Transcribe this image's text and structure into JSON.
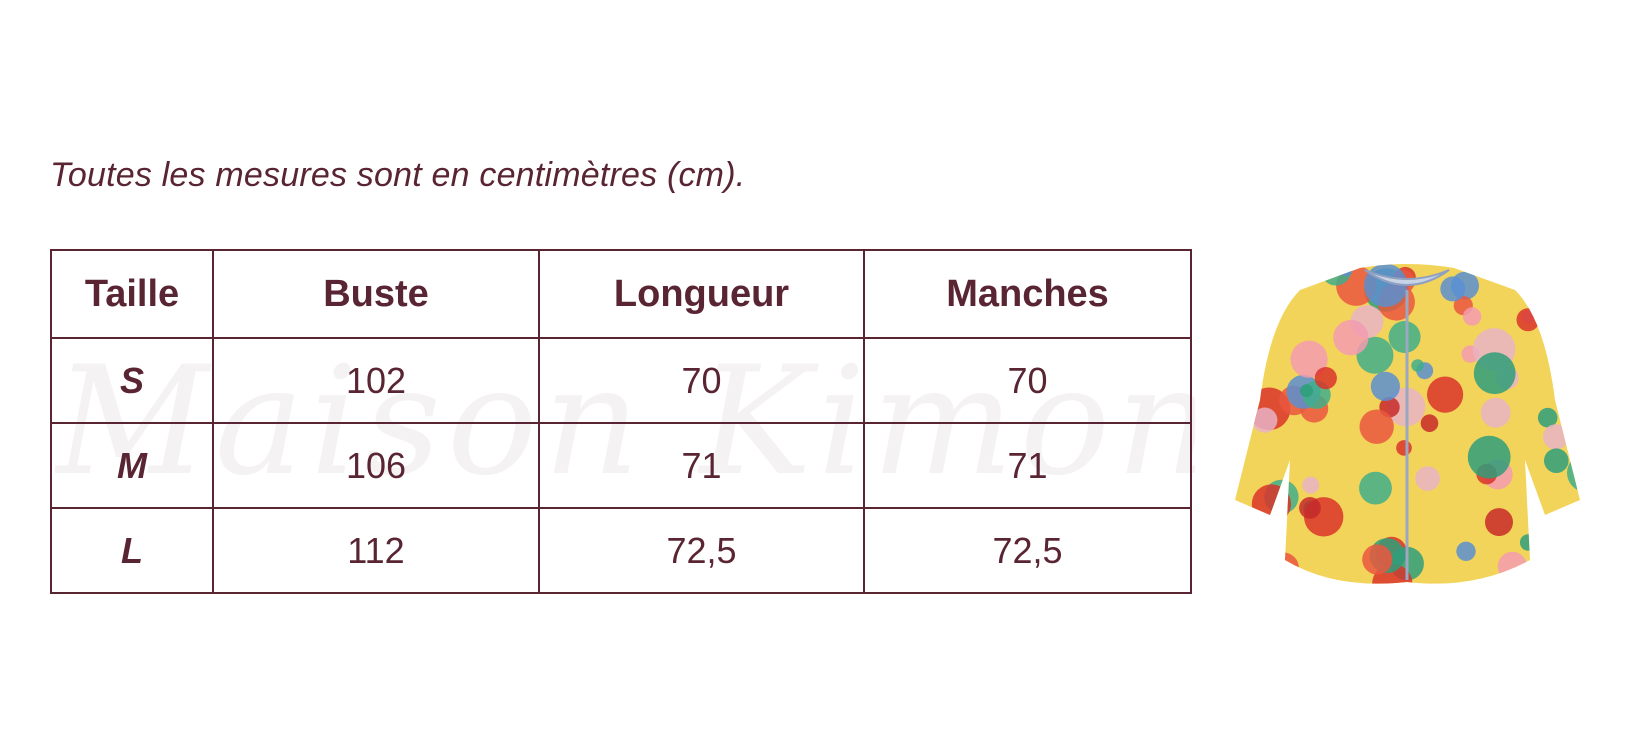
{
  "note_text": "Toutes les mesures sont en centimètres (cm).",
  "watermark": "Maison Kimono",
  "table": {
    "header": [
      "Taille",
      "Buste",
      "Longueur",
      "Manches"
    ],
    "rows": [
      [
        "S",
        "102",
        "70",
        "70"
      ],
      [
        "M",
        "106",
        "71",
        "71"
      ],
      [
        "L",
        "112",
        "72,5",
        "72,5"
      ]
    ]
  }
}
